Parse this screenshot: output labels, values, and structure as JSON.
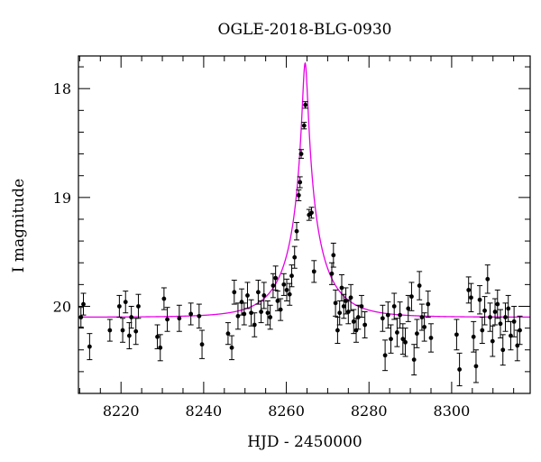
{
  "chart_data": {
    "type": "scatter",
    "title": "OGLE-2018-BLG-0930",
    "xlabel": "HJD - 2450000",
    "ylabel": "I magnitude",
    "xlim": [
      8209.7,
      8319.0
    ],
    "ylim": [
      20.8,
      17.7
    ],
    "y_inverted": true,
    "x_ticks": [
      8220,
      8240,
      8260,
      8280,
      8300
    ],
    "y_ticks": [
      18,
      19,
      20
    ],
    "grid": false,
    "colors": {
      "points": "#000000",
      "model": "#e600e6",
      "axes": "#000000"
    },
    "series": [
      {
        "kind": "points_with_errorbars",
        "points": [
          {
            "x": 8210.3,
            "y": 20.1,
            "e": 0.09
          },
          {
            "x": 8210.9,
            "y": 19.98,
            "e": 0.1
          },
          {
            "x": 8212.4,
            "y": 20.37,
            "e": 0.12
          },
          {
            "x": 8217.3,
            "y": 20.22,
            "e": 0.1
          },
          {
            "x": 8219.6,
            "y": 20.0,
            "e": 0.1
          },
          {
            "x": 8220.4,
            "y": 20.22,
            "e": 0.11
          },
          {
            "x": 8221.1,
            "y": 19.96,
            "e": 0.1
          },
          {
            "x": 8222.0,
            "y": 20.27,
            "e": 0.12
          },
          {
            "x": 8222.5,
            "y": 20.1,
            "e": 0.1
          },
          {
            "x": 8223.6,
            "y": 20.23,
            "e": 0.12
          },
          {
            "x": 8224.2,
            "y": 20.0,
            "e": 0.11
          },
          {
            "x": 8228.8,
            "y": 20.28,
            "e": 0.11
          },
          {
            "x": 8229.5,
            "y": 20.38,
            "e": 0.12
          },
          {
            "x": 8230.4,
            "y": 19.93,
            "e": 0.1
          },
          {
            "x": 8231.2,
            "y": 20.12,
            "e": 0.11
          },
          {
            "x": 8234.1,
            "y": 20.11,
            "e": 0.12
          },
          {
            "x": 8236.9,
            "y": 20.07,
            "e": 0.1
          },
          {
            "x": 8238.9,
            "y": 20.09,
            "e": 0.11
          },
          {
            "x": 8239.6,
            "y": 20.35,
            "e": 0.13
          },
          {
            "x": 8245.9,
            "y": 20.25,
            "e": 0.1
          },
          {
            "x": 8246.8,
            "y": 20.38,
            "e": 0.11
          },
          {
            "x": 8247.4,
            "y": 19.87,
            "e": 0.11
          },
          {
            "x": 8248.3,
            "y": 20.09,
            "e": 0.12
          },
          {
            "x": 8249.2,
            "y": 19.96,
            "e": 0.12
          },
          {
            "x": 8249.8,
            "y": 20.07,
            "e": 0.1
          },
          {
            "x": 8250.6,
            "y": 19.9,
            "e": 0.12
          },
          {
            "x": 8251.5,
            "y": 20.06,
            "e": 0.12
          },
          {
            "x": 8252.3,
            "y": 20.17,
            "e": 0.11
          },
          {
            "x": 8253.2,
            "y": 19.87,
            "e": 0.11
          },
          {
            "x": 8253.9,
            "y": 20.05,
            "e": 0.1
          },
          {
            "x": 8254.6,
            "y": 19.9,
            "e": 0.12
          },
          {
            "x": 8255.5,
            "y": 20.06,
            "e": 0.11
          },
          {
            "x": 8256.1,
            "y": 20.1,
            "e": 0.11
          },
          {
            "x": 8256.8,
            "y": 19.81,
            "e": 0.11
          },
          {
            "x": 8257.4,
            "y": 19.74,
            "e": 0.11
          },
          {
            "x": 8257.9,
            "y": 19.95,
            "e": 0.09
          },
          {
            "x": 8258.6,
            "y": 20.03,
            "e": 0.1
          },
          {
            "x": 8259.4,
            "y": 19.8,
            "e": 0.1
          },
          {
            "x": 8260.1,
            "y": 19.85,
            "e": 0.1
          },
          {
            "x": 8260.8,
            "y": 19.89,
            "e": 0.1
          },
          {
            "x": 8261.3,
            "y": 19.72,
            "e": 0.1
          },
          {
            "x": 8262.0,
            "y": 19.55,
            "e": 0.1
          },
          {
            "x": 8262.5,
            "y": 19.31,
            "e": 0.08
          },
          {
            "x": 8263.0,
            "y": 18.98,
            "e": 0.05
          },
          {
            "x": 8263.3,
            "y": 18.86,
            "e": 0.05
          },
          {
            "x": 8263.6,
            "y": 18.6,
            "e": 0.04
          },
          {
            "x": 8264.3,
            "y": 18.34,
            "e": 0.03
          },
          {
            "x": 8264.6,
            "y": 18.15,
            "e": 0.03
          },
          {
            "x": 8265.5,
            "y": 19.16,
            "e": 0.05
          },
          {
            "x": 8266.1,
            "y": 19.14,
            "e": 0.05
          },
          {
            "x": 8266.7,
            "y": 19.68,
            "e": 0.1
          },
          {
            "x": 8271.0,
            "y": 19.7,
            "e": 0.1
          },
          {
            "x": 8271.4,
            "y": 19.53,
            "e": 0.11
          },
          {
            "x": 8271.9,
            "y": 19.97,
            "e": 0.12
          },
          {
            "x": 8272.4,
            "y": 20.22,
            "e": 0.12
          },
          {
            "x": 8272.9,
            "y": 20.06,
            "e": 0.11
          },
          {
            "x": 8273.4,
            "y": 19.83,
            "e": 0.12
          },
          {
            "x": 8273.9,
            "y": 20.0,
            "e": 0.11
          },
          {
            "x": 8274.4,
            "y": 19.95,
            "e": 0.12
          },
          {
            "x": 8275.0,
            "y": 20.05,
            "e": 0.11
          },
          {
            "x": 8275.6,
            "y": 19.92,
            "e": 0.12
          },
          {
            "x": 8276.3,
            "y": 20.14,
            "e": 0.11
          },
          {
            "x": 8276.9,
            "y": 20.22,
            "e": 0.11
          },
          {
            "x": 8277.4,
            "y": 20.1,
            "e": 0.11
          },
          {
            "x": 8278.2,
            "y": 20.0,
            "e": 0.1
          },
          {
            "x": 8279.0,
            "y": 20.17,
            "e": 0.12
          },
          {
            "x": 8283.3,
            "y": 20.11,
            "e": 0.12
          },
          {
            "x": 8283.9,
            "y": 20.45,
            "e": 0.14
          },
          {
            "x": 8284.6,
            "y": 20.08,
            "e": 0.12
          },
          {
            "x": 8285.3,
            "y": 20.3,
            "e": 0.13
          },
          {
            "x": 8286.1,
            "y": 20.0,
            "e": 0.12
          },
          {
            "x": 8286.8,
            "y": 20.24,
            "e": 0.13
          },
          {
            "x": 8287.5,
            "y": 20.08,
            "e": 0.12
          },
          {
            "x": 8288.2,
            "y": 20.3,
            "e": 0.14
          },
          {
            "x": 8288.8,
            "y": 20.33,
            "e": 0.13
          },
          {
            "x": 8289.5,
            "y": 20.02,
            "e": 0.12
          },
          {
            "x": 8290.3,
            "y": 19.91,
            "e": 0.13
          },
          {
            "x": 8290.9,
            "y": 20.49,
            "e": 0.14
          },
          {
            "x": 8291.6,
            "y": 20.25,
            "e": 0.13
          },
          {
            "x": 8292.2,
            "y": 19.81,
            "e": 0.13
          },
          {
            "x": 8292.8,
            "y": 20.1,
            "e": 0.12
          },
          {
            "x": 8293.4,
            "y": 20.19,
            "e": 0.13
          },
          {
            "x": 8294.3,
            "y": 19.98,
            "e": 0.12
          },
          {
            "x": 8295.0,
            "y": 20.29,
            "e": 0.13
          },
          {
            "x": 8301.2,
            "y": 20.26,
            "e": 0.14
          },
          {
            "x": 8301.9,
            "y": 20.58,
            "e": 0.15
          },
          {
            "x": 8304.1,
            "y": 19.85,
            "e": 0.12
          },
          {
            "x": 8304.7,
            "y": 19.92,
            "e": 0.13
          },
          {
            "x": 8305.3,
            "y": 20.28,
            "e": 0.14
          },
          {
            "x": 8305.9,
            "y": 20.55,
            "e": 0.15
          },
          {
            "x": 8306.8,
            "y": 19.94,
            "e": 0.13
          },
          {
            "x": 8307.4,
            "y": 20.22,
            "e": 0.12
          },
          {
            "x": 8308.0,
            "y": 20.04,
            "e": 0.13
          },
          {
            "x": 8308.7,
            "y": 19.75,
            "e": 0.13
          },
          {
            "x": 8309.3,
            "y": 20.1,
            "e": 0.13
          },
          {
            "x": 8309.9,
            "y": 20.32,
            "e": 0.14
          },
          {
            "x": 8310.5,
            "y": 20.05,
            "e": 0.12
          },
          {
            "x": 8311.1,
            "y": 19.98,
            "e": 0.13
          },
          {
            "x": 8311.8,
            "y": 20.16,
            "e": 0.13
          },
          {
            "x": 8312.4,
            "y": 20.4,
            "e": 0.14
          },
          {
            "x": 8313.0,
            "y": 20.1,
            "e": 0.13
          },
          {
            "x": 8313.7,
            "y": 20.02,
            "e": 0.12
          },
          {
            "x": 8314.3,
            "y": 20.27,
            "e": 0.13
          },
          {
            "x": 8315.1,
            "y": 20.14,
            "e": 0.14
          },
          {
            "x": 8315.9,
            "y": 20.36,
            "e": 0.14
          },
          {
            "x": 8316.5,
            "y": 20.22,
            "e": 0.13
          }
        ]
      },
      {
        "kind": "model_curve",
        "model": {
          "baseline": 20.1,
          "t0": 8264.55,
          "u0": 0.062,
          "tE": 10.0,
          "fs": 0.5
        }
      }
    ]
  }
}
